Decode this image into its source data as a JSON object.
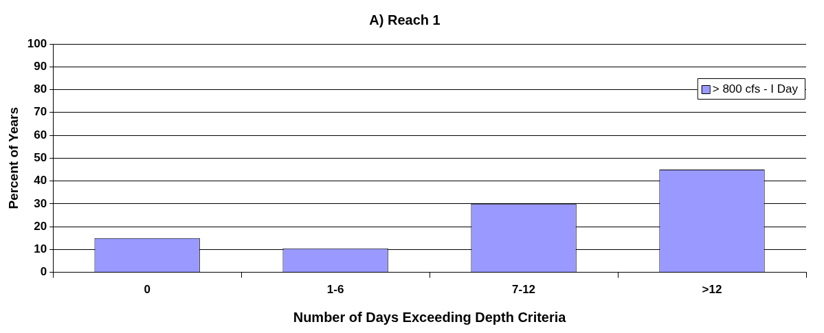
{
  "chart_data": {
    "type": "bar",
    "title": "A) Reach 1",
    "xlabel": "Number of Days Exceeding Depth Criteria",
    "ylabel": "Percent of Years",
    "categories": [
      "0",
      "1-6",
      "7-12",
      ">12"
    ],
    "series": [
      {
        "name": "> 800 cfs - I Day",
        "color": "#9999ff",
        "values": [
          15,
          10.5,
          30,
          45
        ]
      }
    ],
    "ylim": [
      0,
      100
    ],
    "yticks": [
      0,
      10,
      20,
      30,
      40,
      50,
      60,
      70,
      80,
      90,
      100
    ],
    "grid": "y",
    "legend": "top right"
  }
}
